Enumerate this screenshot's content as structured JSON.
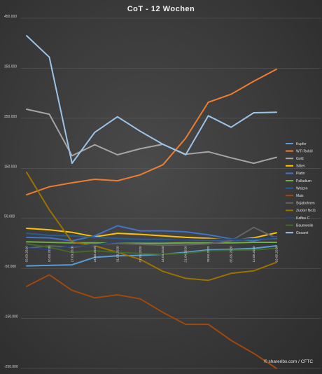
{
  "chart_data": {
    "type": "line",
    "title": "CoT - 12 Wochen",
    "source": "© shareribs.com / CFTC",
    "ylim": [
      -250000,
      450000
    ],
    "yticks": [
      -250000,
      -150000,
      -50000,
      50000,
      150000,
      250000,
      350000,
      450000
    ],
    "ytick_labels": [
      "-250.000",
      "-150.000",
      "-50.000",
      "50.000",
      "150.000",
      "250.000",
      "350.000",
      "450.000"
    ],
    "grid": true,
    "legend_position": "right",
    "categories": [
      "03.03.2020",
      "10.03.2020",
      "17.03.2020",
      "24.03.2020",
      "31.03.2020",
      "07.04.2020",
      "14.04.2020",
      "21.04.2020",
      "28.04.2020",
      "05.05.2020",
      "12.05.2020",
      "19.05.2020"
    ],
    "series": [
      {
        "name": "Kupfer",
        "color": "#5b9bd5",
        "values": [
          -45000,
          -44000,
          -43000,
          -28000,
          -25000,
          -24000,
          -22000,
          -18000,
          -13000,
          -12000,
          -10000,
          -5000
        ]
      },
      {
        "name": "WTI Rohöl",
        "color": "#ed7d31",
        "values": [
          97000,
          113000,
          121000,
          128000,
          125000,
          137000,
          157000,
          210000,
          282000,
          298000,
          324000,
          348000
        ]
      },
      {
        "name": "Gold",
        "color": "#a5a5a5",
        "values": [
          268000,
          258000,
          175000,
          197000,
          177000,
          189000,
          198000,
          178000,
          183000,
          171000,
          160000,
          172000
        ]
      },
      {
        "name": "Silber",
        "color": "#ffc000",
        "values": [
          30000,
          27000,
          22000,
          13000,
          20000,
          18000,
          15000,
          12000,
          10000,
          6000,
          11000,
          21000
        ]
      },
      {
        "name": "Platin",
        "color": "#4472c4",
        "values": [
          12000,
          11000,
          5000,
          15000,
          35000,
          25000,
          25000,
          23000,
          17000,
          9000,
          5000,
          13000
        ]
      },
      {
        "name": "Palladium",
        "color": "#70ad47",
        "values": [
          3000,
          2000,
          1000,
          1000,
          0,
          0,
          0,
          1000,
          1000,
          1000,
          2000,
          2000
        ]
      },
      {
        "name": "Weizen",
        "color": "#255e91",
        "values": [
          20000,
          16000,
          15000,
          12000,
          10000,
          8000,
          8000,
          7000,
          6000,
          5000,
          8000,
          9000
        ]
      },
      {
        "name": "Mais",
        "color": "#9e480e",
        "values": [
          -86000,
          -63000,
          -94000,
          -109000,
          -103000,
          -111000,
          -138000,
          -162000,
          -162000,
          -194000,
          -220000,
          -250000
        ]
      },
      {
        "name": "Sojabohnen",
        "color": "#636363",
        "values": [
          -10000,
          -5000,
          -8000,
          -2000,
          0,
          -2000,
          -4000,
          -3000,
          -1000,
          5000,
          32000,
          10000
        ]
      },
      {
        "name": "Zucker No11",
        "color": "#997300",
        "values": [
          142000,
          67000,
          3000,
          -5000,
          -18000,
          -32000,
          -56000,
          -70000,
          -74000,
          -60000,
          -55000,
          -38000
        ]
      },
      {
        "name": "Kaffee C",
        "color": "#264478",
        "values": [
          -10000,
          -12000,
          -6000,
          -3000,
          3000,
          5000,
          5000,
          8000,
          8000,
          8000,
          9000,
          12000
        ]
      },
      {
        "name": "Baumwolle",
        "color": "#43682b",
        "values": [
          -1000,
          -8000,
          -18000,
          -15000,
          -18000,
          -20000,
          -22000,
          -20000,
          -15000,
          -14000,
          -13000,
          -10000
        ]
      },
      {
        "name": "Gesamt",
        "color": "#9dc3e6",
        "values": [
          415000,
          372000,
          160000,
          222000,
          253000,
          224000,
          198000,
          177000,
          255000,
          232000,
          261000,
          262000
        ]
      }
    ]
  }
}
